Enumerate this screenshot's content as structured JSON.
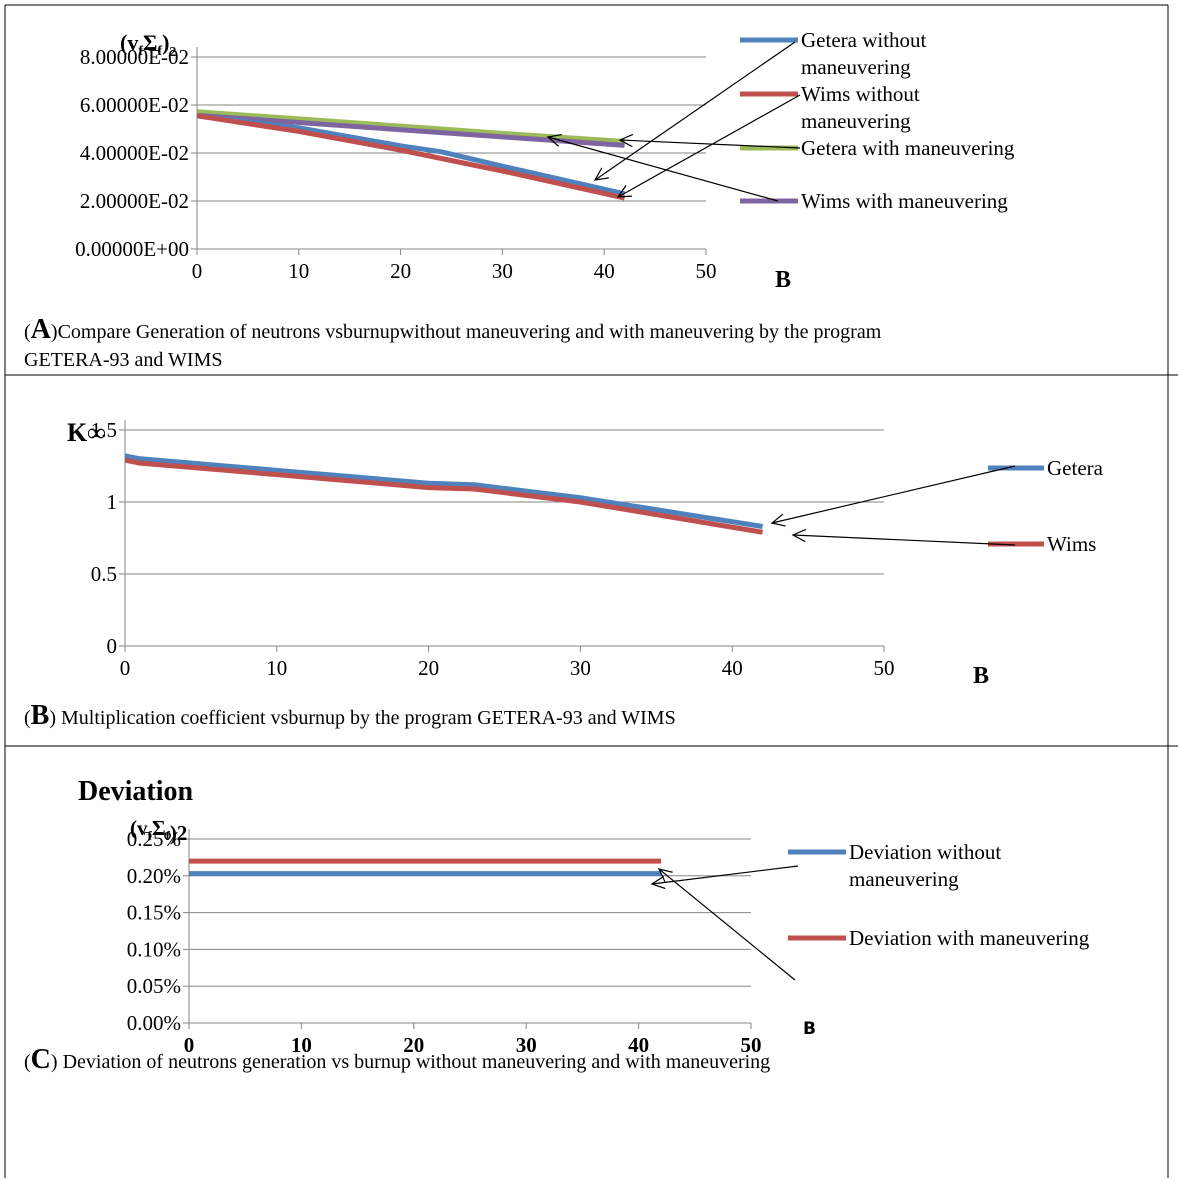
{
  "chart_data": [
    {
      "id": "A",
      "type": "line",
      "ylabel_html": "(v_f Σ_f)_2",
      "ylabel_parts": [
        "(v",
        "f",
        "Σ",
        "f",
        ")",
        "2"
      ],
      "xlabel": "B",
      "x_ticks": [
        "0",
        "10",
        "20",
        "30",
        "40",
        "50"
      ],
      "y_ticks": [
        "0.00000E+00",
        "2.00000E-02",
        "4.00000E-02",
        "6.00000E-02",
        "8.00000E-02"
      ],
      "xlim": [
        0,
        50
      ],
      "ylim": [
        0,
        0.08
      ],
      "grid": true,
      "series": [
        {
          "name": "Getera with maneuvering",
          "color": "#9bbb59",
          "x": [
            0,
            10,
            20,
            30,
            42
          ],
          "y": [
            0.0572,
            0.0542,
            0.0512,
            0.0482,
            0.0448
          ]
        },
        {
          "name": "Wims with maneuvering",
          "color": "#8064a2",
          "x": [
            0,
            10,
            20,
            30,
            42
          ],
          "y": [
            0.0557,
            0.0527,
            0.0497,
            0.0467,
            0.0432
          ]
        },
        {
          "name": "Getera without maneuvering",
          "color": "#4f81bd",
          "x": [
            0,
            10,
            20,
            24,
            30,
            42
          ],
          "y": [
            0.0555,
            0.0505,
            0.043,
            0.0405,
            0.0345,
            0.023
          ]
        },
        {
          "name": "Wims without maneuvering",
          "color": "#c0504d",
          "x": [
            0,
            10,
            20,
            30,
            42
          ],
          "y": [
            0.0555,
            0.049,
            0.0412,
            0.0325,
            0.0212
          ]
        }
      ],
      "legend": [
        {
          "lines": [
            "Getera without",
            "maneuvering"
          ],
          "color": "#4f81bd"
        },
        {
          "lines": [
            "Wims without",
            "maneuvering"
          ],
          "color": "#c0504d"
        },
        {
          "lines": [
            "Getera with maneuvering"
          ],
          "color": "#9bbb59"
        },
        {
          "lines": [
            "Wims with maneuvering"
          ],
          "color": "#8064a2"
        }
      ]
    },
    {
      "id": "B",
      "type": "line",
      "ylabel": "K∞",
      "xlabel": "B",
      "x_ticks": [
        "0",
        "10",
        "20",
        "30",
        "40",
        "50"
      ],
      "y_ticks": [
        "0",
        "0.5",
        "1",
        "1.5"
      ],
      "xlim": [
        0,
        50
      ],
      "ylim": [
        0,
        1.5
      ],
      "grid": true,
      "series": [
        {
          "name": "Getera",
          "color": "#4f81bd",
          "x": [
            0,
            1,
            10,
            20,
            23,
            30,
            42
          ],
          "y": [
            1.32,
            1.3,
            1.22,
            1.13,
            1.12,
            1.03,
            0.83
          ]
        },
        {
          "name": "Wims",
          "color": "#c0504d",
          "x": [
            0,
            1,
            10,
            20,
            23,
            30,
            42
          ],
          "y": [
            1.29,
            1.27,
            1.19,
            1.1,
            1.09,
            1.0,
            0.79
          ]
        }
      ],
      "legend": [
        {
          "lines": [
            "Getera"
          ],
          "color": "#4f81bd"
        },
        {
          "lines": [
            "Wims"
          ],
          "color": "#c0504d"
        }
      ]
    },
    {
      "id": "C",
      "type": "line",
      "title": "Deviation",
      "ylabel_parts": [
        "(v",
        "f",
        "Σ",
        "f",
        ")2"
      ],
      "xlabel": "B",
      "x_ticks": [
        "0",
        "10",
        "20",
        "30",
        "40",
        "50"
      ],
      "y_ticks": [
        "0.00%",
        "0.05%",
        "0.10%",
        "0.15%",
        "0.20%",
        "0.25%"
      ],
      "xlim": [
        0,
        50
      ],
      "ylim": [
        0,
        0.0025
      ],
      "grid": true,
      "series": [
        {
          "name": "Deviation with maneuvering",
          "color": "#c0504d",
          "x": [
            0,
            42
          ],
          "y": [
            0.0022,
            0.0022
          ]
        },
        {
          "name": "Deviation without maneuvering",
          "color": "#4f81bd",
          "x": [
            0,
            42
          ],
          "y": [
            0.00203,
            0.00203
          ]
        }
      ],
      "legend": [
        {
          "lines": [
            "Deviation without",
            "maneuvering"
          ],
          "color": "#4f81bd"
        },
        {
          "lines": [
            "Deviation with maneuvering"
          ],
          "color": "#c0504d"
        }
      ]
    }
  ],
  "captions": [
    {
      "letter": "A",
      "lines": [
        ")Compare Generation of neutrons vsburnupwithout maneuvering and with maneuvering by the program",
        "GETERA-93 and WIMS"
      ]
    },
    {
      "letter": "B",
      "lines": [
        ") Multiplication coefficient vsburnup by the program GETERA-93 and WIMS"
      ]
    },
    {
      "letter": "C",
      "lines": [
        ") Deviation of neutrons generation vs burnup without maneuvering and with maneuvering"
      ]
    }
  ]
}
